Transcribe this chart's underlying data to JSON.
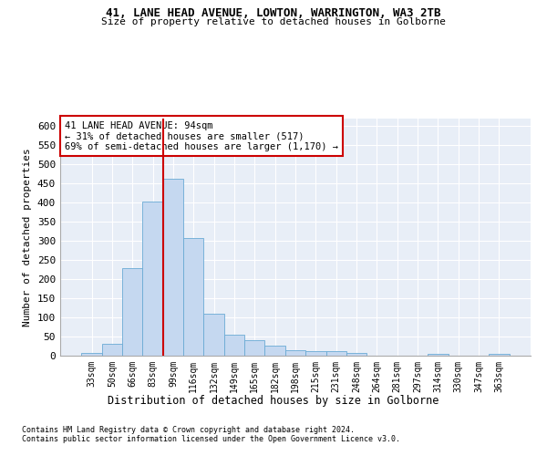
{
  "title1": "41, LANE HEAD AVENUE, LOWTON, WARRINGTON, WA3 2TB",
  "title2": "Size of property relative to detached houses in Golborne",
  "xlabel": "Distribution of detached houses by size in Golborne",
  "ylabel": "Number of detached properties",
  "categories": [
    "33sqm",
    "50sqm",
    "66sqm",
    "83sqm",
    "99sqm",
    "116sqm",
    "132sqm",
    "149sqm",
    "165sqm",
    "182sqm",
    "198sqm",
    "215sqm",
    "231sqm",
    "248sqm",
    "264sqm",
    "281sqm",
    "297sqm",
    "314sqm",
    "330sqm",
    "347sqm",
    "363sqm"
  ],
  "values": [
    7,
    30,
    230,
    403,
    463,
    307,
    110,
    54,
    40,
    27,
    15,
    13,
    11,
    7,
    0,
    0,
    0,
    5,
    0,
    0,
    5
  ],
  "bar_color": "#c5d8f0",
  "bar_edgecolor": "#6aaad4",
  "vline_color": "#cc0000",
  "annotation_text": "41 LANE HEAD AVENUE: 94sqm\n← 31% of detached houses are smaller (517)\n69% of semi-detached houses are larger (1,170) →",
  "annotation_box_color": "#ffffff",
  "annotation_box_edgecolor": "#cc0000",
  "footnote1": "Contains HM Land Registry data © Crown copyright and database right 2024.",
  "footnote2": "Contains public sector information licensed under the Open Government Licence v3.0.",
  "ylim": [
    0,
    620
  ],
  "yticks": [
    0,
    50,
    100,
    150,
    200,
    250,
    300,
    350,
    400,
    450,
    500,
    550,
    600
  ],
  "bg_color": "#e8eef7",
  "grid_color": "#ffffff",
  "fig_bg_color": "#ffffff"
}
